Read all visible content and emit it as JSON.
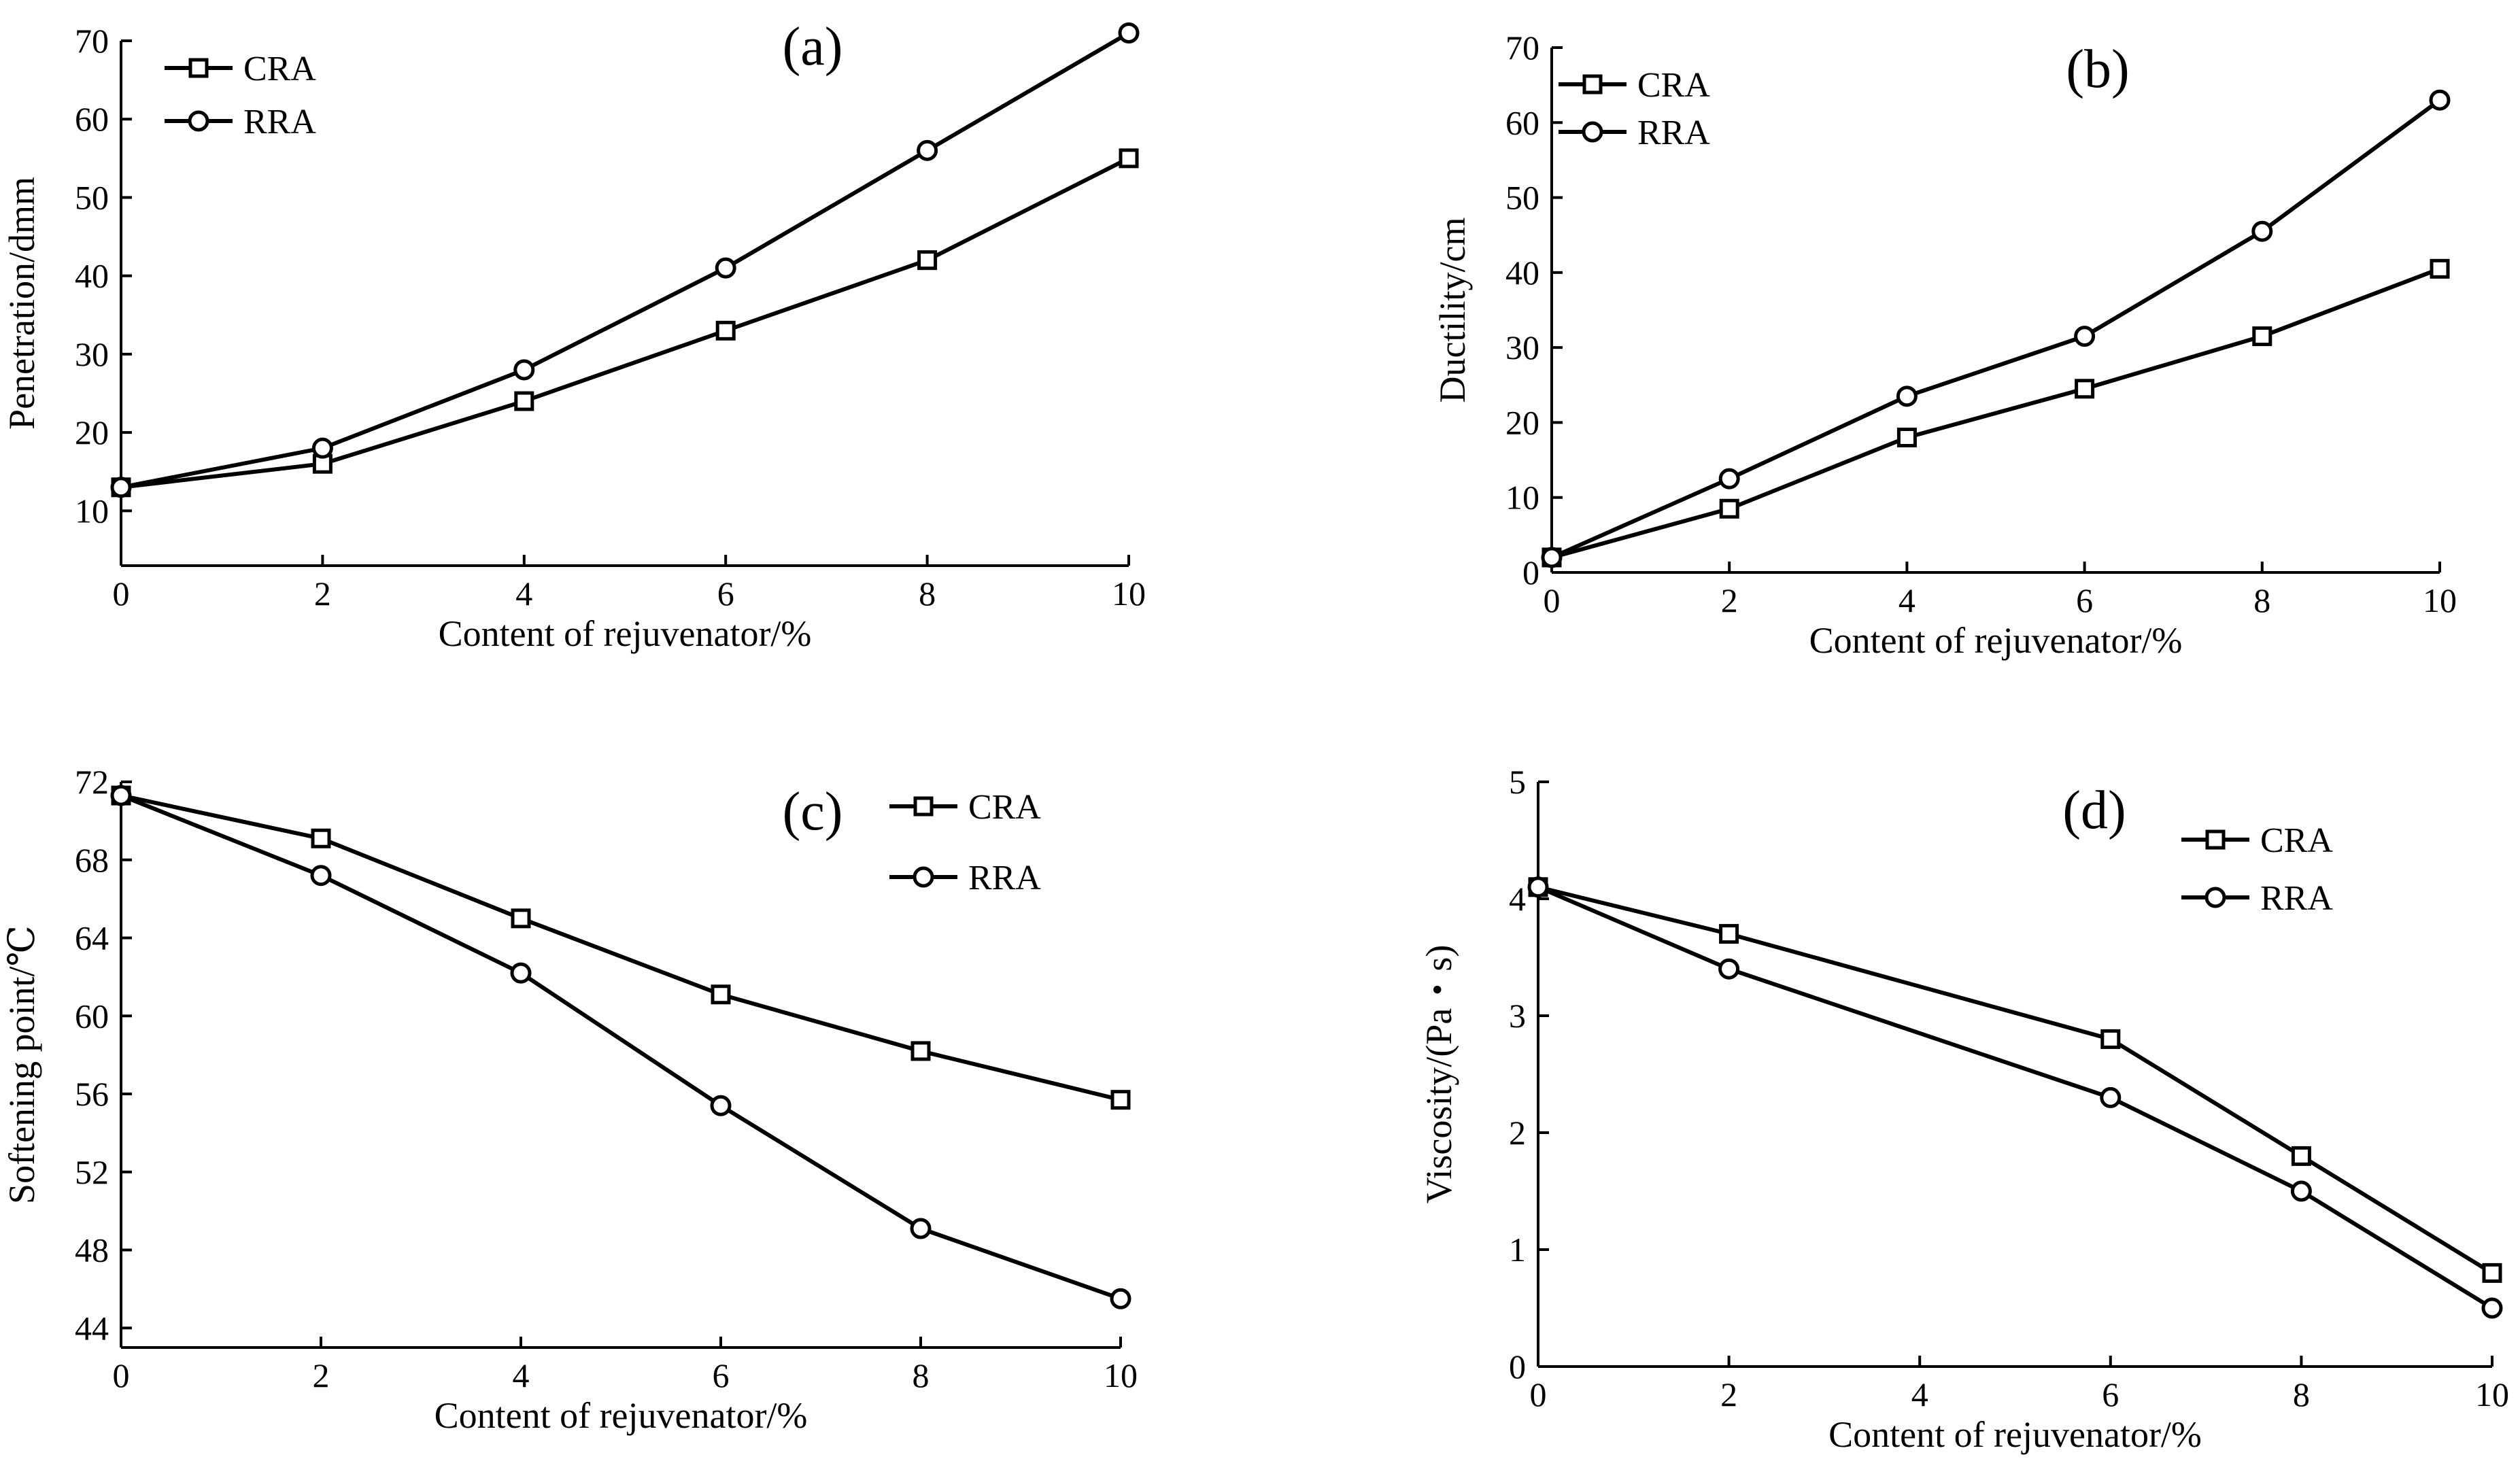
{
  "chart_data": [
    {
      "panel": "(a)",
      "type": "line",
      "xlabel": "Content of rejuvenator/%",
      "ylabel": "Penetration/dmm",
      "x": [
        0,
        2,
        4,
        6,
        8,
        10
      ],
      "xlim": [
        0,
        10
      ],
      "ylim": [
        3,
        70
      ],
      "xticks": [
        0,
        2,
        4,
        6,
        8,
        10
      ],
      "yticks": [
        10,
        20,
        30,
        40,
        50,
        60,
        70
      ],
      "series": [
        {
          "name": "CRA",
          "marker": "square",
          "values": [
            13,
            16,
            24,
            33,
            42,
            55
          ]
        },
        {
          "name": "RRA",
          "marker": "circle",
          "values": [
            13,
            18,
            28,
            41,
            56,
            71
          ]
        }
      ],
      "legend_position": "top-left"
    },
    {
      "panel": "(b)",
      "type": "line",
      "xlabel": "Content of rejuvenator/%",
      "ylabel": "Ductility/cm",
      "x": [
        0,
        2,
        4,
        6,
        8,
        10
      ],
      "xlim": [
        0,
        10
      ],
      "ylim": [
        0,
        70
      ],
      "xticks": [
        0,
        2,
        4,
        6,
        8,
        10
      ],
      "yticks": [
        0,
        10,
        20,
        30,
        40,
        50,
        60,
        70
      ],
      "series": [
        {
          "name": "CRA",
          "marker": "square",
          "values": [
            2,
            8.5,
            18,
            24.5,
            31.5,
            40.5
          ]
        },
        {
          "name": "RRA",
          "marker": "circle",
          "values": [
            2,
            12.5,
            23.5,
            31.5,
            45.5,
            63
          ]
        }
      ],
      "legend_position": "top-left"
    },
    {
      "panel": "(c)",
      "type": "line",
      "xlabel": "Content of rejuvenator/%",
      "ylabel": "Softening point/℃",
      "x": [
        0,
        2,
        4,
        6,
        8,
        10
      ],
      "xlim": [
        0,
        10
      ],
      "ylim": [
        43,
        72
      ],
      "xticks": [
        0,
        2,
        4,
        6,
        8,
        10
      ],
      "yticks": [
        44,
        48,
        52,
        56,
        60,
        64,
        68,
        72
      ],
      "series": [
        {
          "name": "CRA",
          "marker": "square",
          "values": [
            71.3,
            69.1,
            65,
            61.1,
            58.2,
            55.7
          ]
        },
        {
          "name": "RRA",
          "marker": "circle",
          "values": [
            71.3,
            67.2,
            62.2,
            55.4,
            49.1,
            45.5
          ]
        }
      ],
      "legend_position": "top-right"
    },
    {
      "panel": "(d)",
      "type": "line",
      "xlabel": "Content of rejuvenator/%",
      "ylabel": "Viscosity/(Pa・s)",
      "x": [
        0,
        2,
        6,
        8,
        10
      ],
      "xlim": [
        0,
        10
      ],
      "ylim": [
        0,
        5
      ],
      "xticks": [
        0,
        2,
        4,
        6,
        8,
        10
      ],
      "yticks": [
        0,
        1,
        2,
        3,
        4,
        5
      ],
      "series": [
        {
          "name": "CRA",
          "marker": "square",
          "values": [
            4.1,
            3.7,
            2.8,
            1.8,
            0.8
          ]
        },
        {
          "name": "RRA",
          "marker": "circle",
          "values": [
            4.1,
            3.4,
            2.3,
            1.5,
            0.5
          ]
        }
      ],
      "legend_position": "top-right"
    }
  ]
}
